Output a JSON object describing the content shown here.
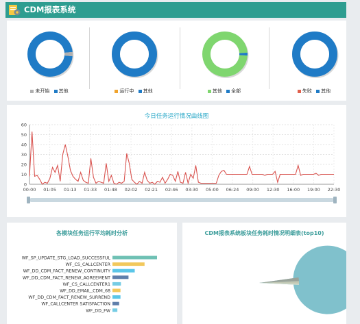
{
  "app": {
    "title": "CDM报表系统",
    "accent": "#2e9d90"
  },
  "status_donuts": [
    {
      "legend": [
        {
          "label": "未开始",
          "color": "#b0b0b0"
        },
        {
          "label": "其他",
          "color": "#1f7bc6"
        }
      ],
      "main_fraction": 0.97,
      "main_color": "#1f7bc6",
      "minor_color": "#b0b0b0"
    },
    {
      "legend": [
        {
          "label": "运行中",
          "color": "#f0a32c"
        },
        {
          "label": "其他",
          "color": "#1f7bc6"
        }
      ],
      "main_fraction": 1.0,
      "main_color": "#1f7bc6",
      "minor_color": "#f0a32c"
    },
    {
      "legend": [
        {
          "label": "其他",
          "color": "#7fd66f"
        },
        {
          "label": "全部",
          "color": "#1f7bc6"
        }
      ],
      "main_fraction": 0.98,
      "main_color": "#7fd66f",
      "minor_color": "#1f7bc6"
    },
    {
      "legend": [
        {
          "label": "失败",
          "color": "#e0604d"
        },
        {
          "label": "其他",
          "color": "#1f7bc6"
        }
      ],
      "main_fraction": 1.0,
      "main_color": "#1f7bc6",
      "minor_color": "#e0604d"
    }
  ],
  "line_chart": {
    "title": "今日任务运行情况曲线图",
    "chart_data": {
      "type": "line",
      "ylim": [
        0,
        60
      ],
      "yticks": [
        0,
        10,
        20,
        30,
        40,
        50,
        60
      ],
      "xticks": [
        "00:00",
        "01:05",
        "01:13",
        "01:33",
        "01:48",
        "02:02",
        "02:21",
        "02:46",
        "03:30",
        "05:00",
        "06:24",
        "09:00",
        "12:30",
        "16:00",
        "19:00",
        "22:30"
      ],
      "values": [
        8,
        53,
        8,
        9,
        5,
        0,
        2,
        1,
        6,
        17,
        12,
        19,
        3,
        30,
        40,
        28,
        14,
        8,
        5,
        3,
        12,
        4,
        2,
        1,
        26,
        7,
        1,
        3,
        2,
        1,
        21,
        3,
        9,
        1,
        0,
        2,
        1,
        3,
        31,
        21,
        5,
        2,
        0,
        3,
        1,
        12,
        4,
        1,
        2,
        0,
        3,
        2,
        7,
        1,
        5,
        10,
        9,
        3,
        13,
        2,
        1,
        12,
        1,
        10,
        6,
        19,
        2,
        1,
        1,
        1,
        1,
        1,
        1,
        1,
        9,
        13,
        14,
        10,
        10,
        10,
        10,
        10,
        10,
        10,
        10,
        10,
        18,
        10,
        10,
        10,
        10,
        10,
        9,
        10,
        10,
        10,
        13,
        2,
        10,
        10,
        10,
        10,
        10,
        10,
        10,
        19,
        9,
        10,
        10,
        10,
        10,
        10,
        11,
        9,
        10,
        10,
        10,
        10,
        10,
        10
      ],
      "line_color": "#d9534f"
    }
  },
  "bar_chart": {
    "title": "各模块任务运行平均耗时分析",
    "chart_data": {
      "type": "bar",
      "orientation": "horizontal",
      "categories": [
        "WF_SP_UPDATE_STG_LOAD_SUCCESSFUL",
        "WF_CS_CALLCENTER",
        "WF_DD_CDM_FACT_RENEW_CONTINUITY",
        "WF_DD_CDM_FACT_RENEW_AGREEMENT",
        "WF_CS_CALLCENTER1",
        "WF_DD_EMAIL_CDM_68",
        "WF_DD_CDM_FACT_RENEW_SURREND",
        "WF_CALLCENTER SATISFACTION",
        "WF_DD_FW"
      ],
      "values": [
        100,
        72,
        50,
        36,
        19,
        18,
        18,
        15,
        11
      ],
      "colors": [
        "#6fc1b4",
        "#f2c85c",
        "#5bc6e8",
        "#5f7fab",
        "#76cce4",
        "#f2c85c",
        "#5bc6e8",
        "#5f7fab",
        "#76cce4"
      ]
    }
  },
  "pie_chart": {
    "title": "CDM报表系统板块任务耗时情况明细表(top10)",
    "chart_data": {
      "type": "pie",
      "values": [
        97,
        1.5,
        1,
        0.5
      ],
      "colors": [
        "#80c1cc",
        "#9aa39a",
        "#c2c8b4",
        "#d8dcc8"
      ]
    }
  }
}
